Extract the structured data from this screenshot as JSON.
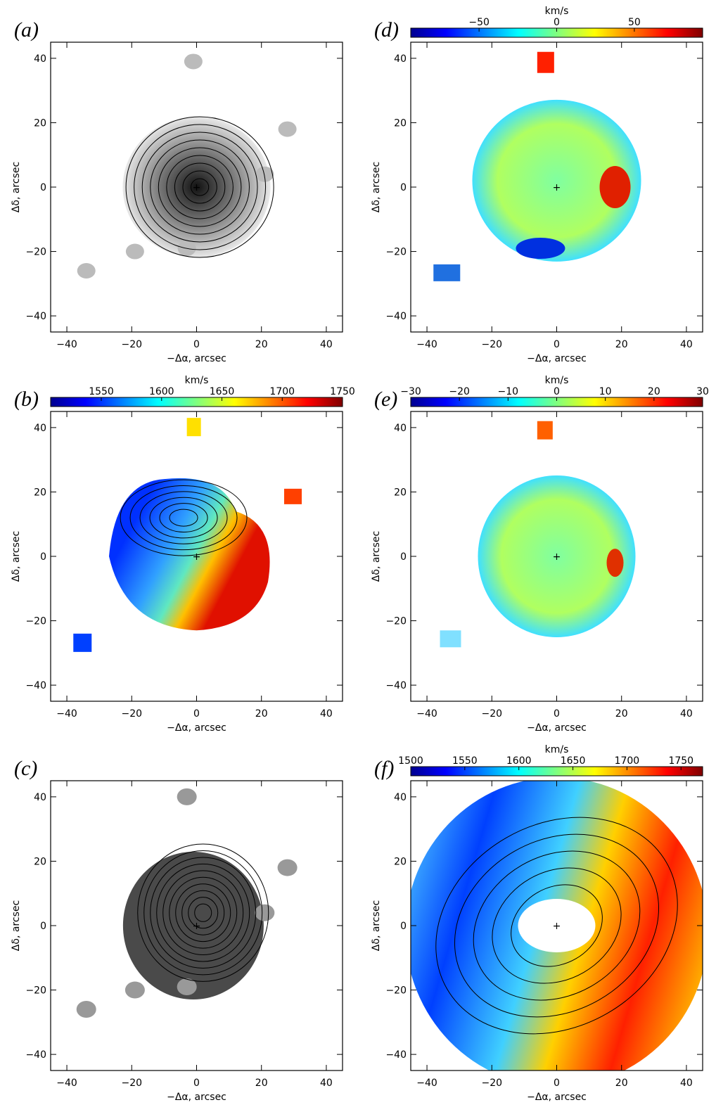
{
  "chart_data": [
    {
      "type": "heatmap",
      "panel_label": "(a)",
      "xlabel": "−Δα, arcsec",
      "ylabel": "Δδ, arcsec",
      "xlim": [
        -45,
        45
      ],
      "ylim": [
        -45,
        45
      ],
      "xticks": [
        {
          "value": -40,
          "label": "−40"
        },
        {
          "value": -20,
          "label": "−20"
        },
        0,
        20,
        40
      ],
      "yticks": [
        {
          "value": -40,
          "label": "−40"
        },
        {
          "value": -20,
          "label": "−20"
        },
        0,
        20,
        40
      ]
    },
    {
      "type": "heatmap",
      "panel_label": "(b)",
      "xlabel": "−Δα, arcsec",
      "ylabel": "Δδ, arcsec",
      "xlim": [
        -45,
        45
      ],
      "ylim": [
        -45,
        45
      ],
      "xticks": [
        {
          "value": -40,
          "label": "−40"
        },
        {
          "value": -20,
          "label": "−20"
        },
        0,
        20,
        40
      ],
      "yticks": [
        {
          "value": -40,
          "label": "−40"
        },
        {
          "value": -20,
          "label": "−20"
        },
        0,
        20,
        40
      ],
      "colorbar": {
        "label": "km/s",
        "lim": [
          1508,
          1750
        ],
        "ticks": [
          1550,
          1600,
          1650,
          1700,
          1750
        ]
      }
    },
    {
      "type": "heatmap",
      "panel_label": "(c)",
      "xlabel": "−Δα, arcsec",
      "ylabel": "Δδ, arcsec",
      "xlim": [
        -45,
        45
      ],
      "ylim": [
        -45,
        45
      ],
      "xticks": [
        {
          "value": -40,
          "label": "−40"
        },
        {
          "value": -20,
          "label": "−20"
        },
        0,
        20,
        40
      ],
      "yticks": [
        {
          "value": -40,
          "label": "−40"
        },
        {
          "value": -20,
          "label": "−20"
        },
        0,
        20,
        40
      ]
    },
    {
      "type": "heatmap",
      "panel_label": "(d)",
      "xlabel": "−Δα, arcsec",
      "ylabel": "Δδ, arcsec",
      "xlim": [
        -45,
        45
      ],
      "ylim": [
        -45,
        45
      ],
      "xticks": [
        {
          "value": -40,
          "label": "−40"
        },
        {
          "value": -20,
          "label": "−20"
        },
        0,
        20,
        40
      ],
      "yticks": [
        {
          "value": -40,
          "label": "−40"
        },
        {
          "value": -20,
          "label": "−20"
        },
        0,
        20,
        40
      ],
      "colorbar": {
        "label": "km/s",
        "lim": [
          -94,
          94
        ],
        "ticks": [
          {
            "value": -50,
            "label": "−50"
          },
          0,
          50
        ]
      }
    },
    {
      "type": "heatmap",
      "panel_label": "(e)",
      "xlabel": "−Δα, arcsec",
      "ylabel": "Δδ, arcsec",
      "xlim": [
        -45,
        45
      ],
      "ylim": [
        -45,
        45
      ],
      "xticks": [
        {
          "value": -40,
          "label": "−40"
        },
        {
          "value": -20,
          "label": "−20"
        },
        0,
        20,
        40
      ],
      "yticks": [
        {
          "value": -40,
          "label": "−40"
        },
        {
          "value": -20,
          "label": "−20"
        },
        0,
        20,
        40
      ],
      "colorbar": {
        "label": "km/s",
        "lim": [
          -30,
          30
        ],
        "ticks": [
          {
            "value": -30,
            "label": "−30"
          },
          {
            "value": -20,
            "label": "−20"
          },
          {
            "value": -10,
            "label": "−10"
          },
          0,
          10,
          20,
          30
        ]
      }
    },
    {
      "type": "heatmap",
      "panel_label": "(f)",
      "xlabel": "−Δα, arcsec",
      "ylabel": "Δδ, arcsec",
      "xlim": [
        -45,
        45
      ],
      "ylim": [
        -45,
        45
      ],
      "xticks": [
        {
          "value": -40,
          "label": "−40"
        },
        {
          "value": -20,
          "label": "−20"
        },
        0,
        20,
        40
      ],
      "yticks": [
        {
          "value": -40,
          "label": "−40"
        },
        {
          "value": -20,
          "label": "−20"
        },
        0,
        20,
        40
      ],
      "colorbar": {
        "label": "km/s",
        "lim": [
          1500,
          1770
        ],
        "ticks": [
          1500,
          1550,
          1600,
          1650,
          1700,
          1750
        ]
      }
    }
  ]
}
